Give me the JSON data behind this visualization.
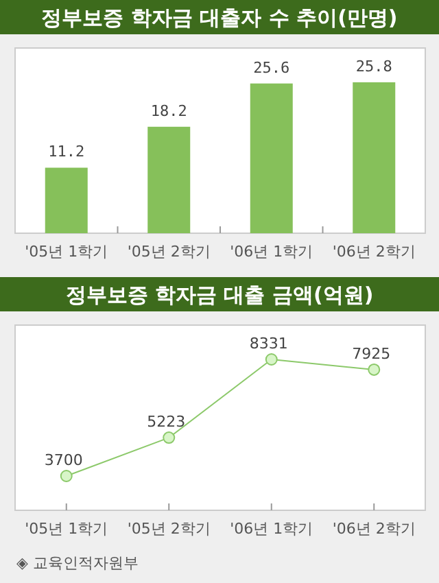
{
  "chart_data": [
    {
      "type": "bar",
      "title": "정부보증 학자금 대출자 수 추이(만명)",
      "categories": [
        "'05년 1학기",
        "'05년 2학기",
        "'06년 1학기",
        "'06년 2학기"
      ],
      "values": [
        11.2,
        18.2,
        25.6,
        25.8
      ],
      "color": "#86c05a",
      "data_labels": true
    },
    {
      "type": "line",
      "title": "정부보증 학자금 대출 금액(억원)",
      "categories": [
        "'05년 1학기",
        "'05년 2학기",
        "'06년 1학기",
        "'06년 2학기"
      ],
      "values": [
        3700,
        5223,
        8331,
        7925
      ],
      "color": "#8cc96a",
      "marker": "circle",
      "data_labels": true,
      "annotations": [
        "◈ 교육인적자원부"
      ]
    }
  ]
}
